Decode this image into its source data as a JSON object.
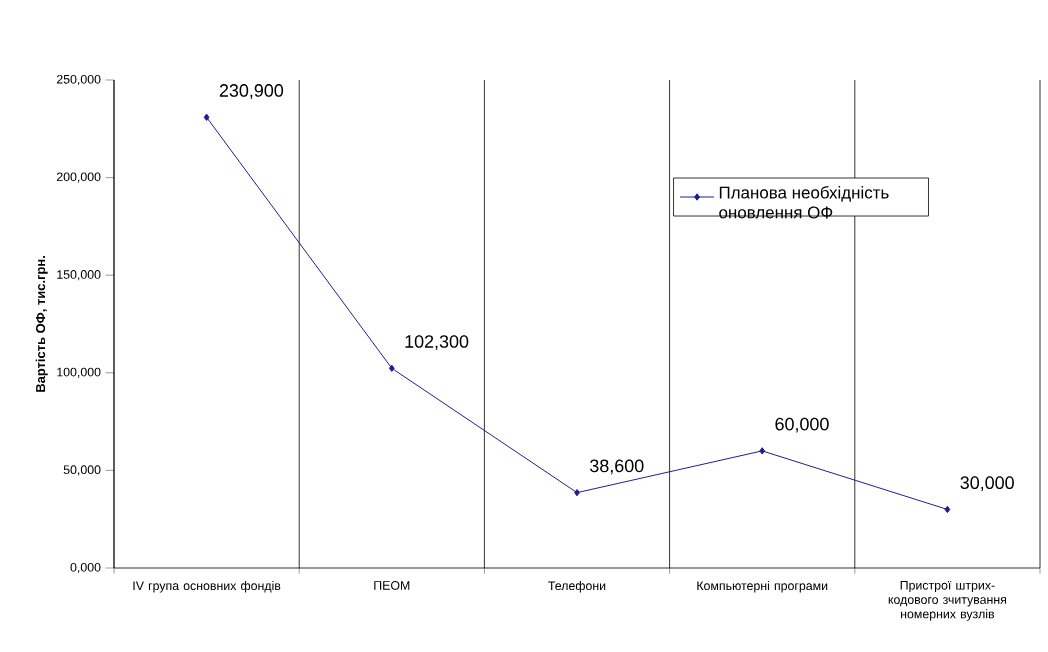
{
  "chart_data": {
    "type": "line",
    "ylabel": "Вартість ОФ, тис.грн.",
    "categories": [
      "IV група основних фондів",
      "ПЕОМ",
      "Телефони",
      "Компьютерні програми",
      "Пристрої штрих-кодового зчитування номерних вузлів"
    ],
    "series": [
      {
        "name": "Планова необхідність оновлення ОФ",
        "color": "#1f1f8f",
        "values": [
          230900,
          102300,
          38600,
          60000,
          30000
        ],
        "value_labels": [
          "230,900",
          "102,300",
          "38,600",
          "60,000",
          "30,000"
        ]
      }
    ],
    "ylim": [
      0,
      250000
    ],
    "yticks": [
      {
        "value": 0,
        "label": "0,000"
      },
      {
        "value": 50000,
        "label": "50,000"
      },
      {
        "value": 100000,
        "label": "100,000"
      },
      {
        "value": 150000,
        "label": "150,000"
      },
      {
        "value": 200000,
        "label": "200,000"
      },
      {
        "value": 250000,
        "label": "250,000"
      }
    ],
    "grid": "x",
    "legend": "top right",
    "marker": "diamond",
    "line_style": "solid"
  }
}
